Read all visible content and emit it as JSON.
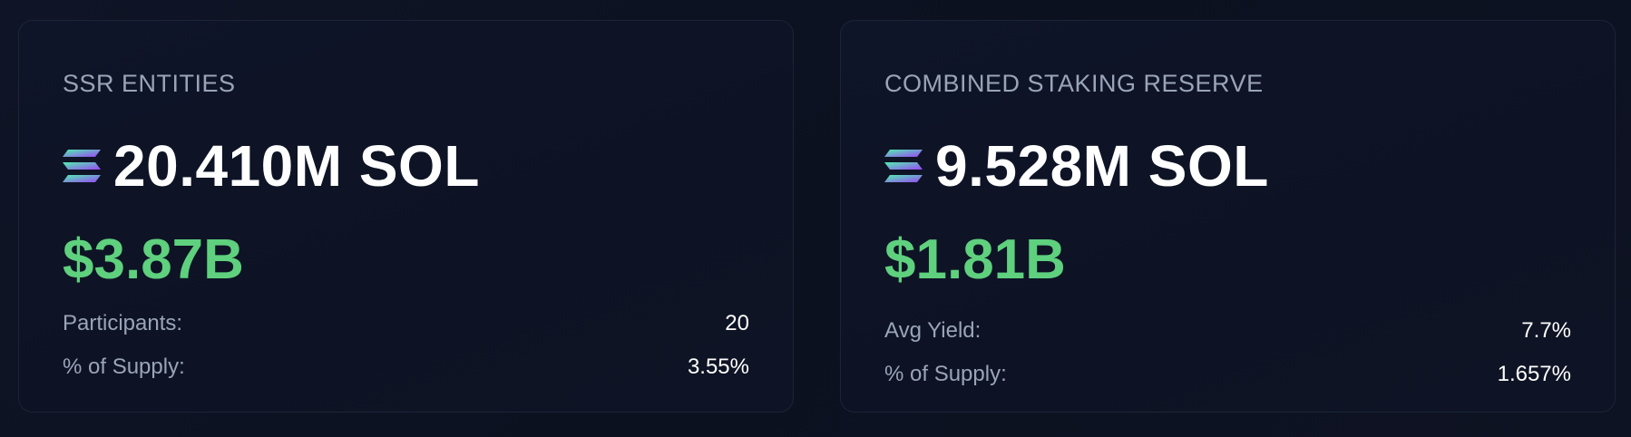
{
  "cards": [
    {
      "title": "SSR ENTITIES",
      "amount": "20.410M SOL",
      "usd": "$3.87B",
      "stats": [
        {
          "label": "Participants:",
          "value": "20"
        },
        {
          "label": "% of Supply:",
          "value": "3.55%"
        }
      ]
    },
    {
      "title": "COMBINED STAKING RESERVE",
      "amount": "9.528M SOL",
      "usd": "$1.81B",
      "stats": [
        {
          "label": "Avg Yield:",
          "value": "7.7%"
        },
        {
          "label": "% of Supply:",
          "value": "1.657%"
        }
      ]
    }
  ],
  "icon": "solana-logo-icon",
  "colors": {
    "usd": "#5fd07e",
    "title": "#9aa4b8",
    "background": "#0d1221"
  }
}
